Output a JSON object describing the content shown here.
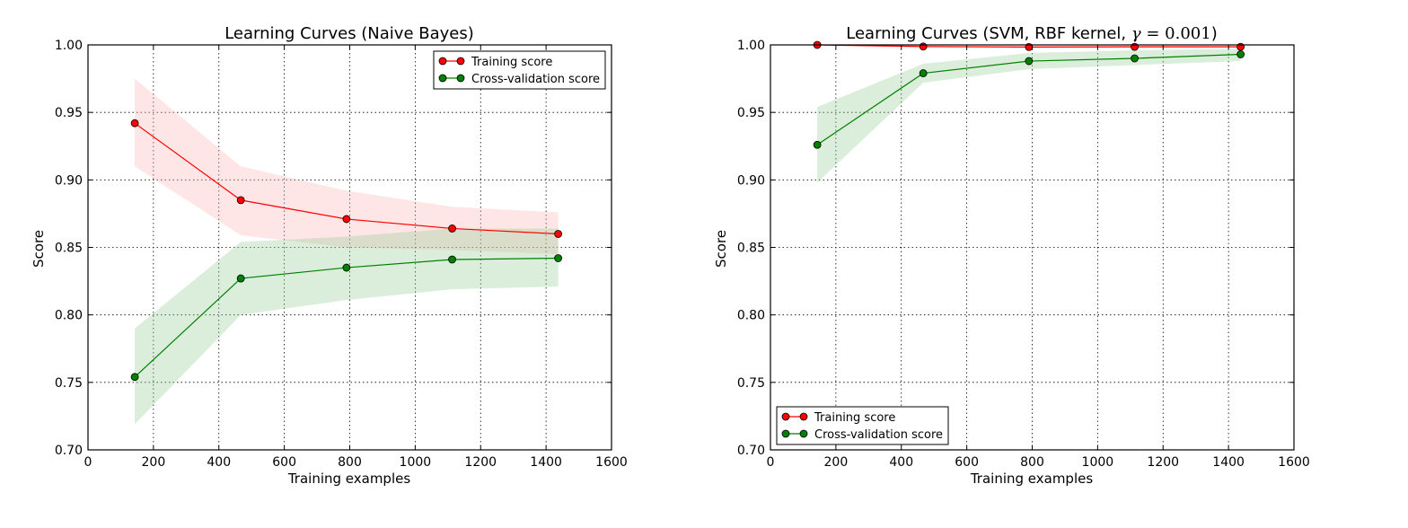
{
  "chart_data": [
    {
      "type": "line",
      "title": "Learning Curves (Naive Bayes)",
      "xlabel": "Training examples",
      "ylabel": "Score",
      "xlim": [
        0,
        1600
      ],
      "ylim": [
        0.7,
        1.0
      ],
      "xticks": [
        0,
        200,
        400,
        600,
        800,
        1000,
        1200,
        1400,
        1600
      ],
      "yticks": [
        0.7,
        0.75,
        0.8,
        0.85,
        0.9,
        0.95,
        1.0
      ],
      "xtick_labels": [
        "0",
        "200",
        "400",
        "600",
        "800",
        "1000",
        "1200",
        "1400",
        "1600"
      ],
      "ytick_labels": [
        "0.70",
        "0.75",
        "0.80",
        "0.85",
        "0.90",
        "0.95",
        "1.00"
      ],
      "grid": true,
      "legend_position": "top-right",
      "x": [
        143,
        467,
        790,
        1113,
        1437
      ],
      "series": [
        {
          "name": "Training score",
          "color": "#ff0000",
          "band_color": "#ffb6b6",
          "values": [
            0.942,
            0.885,
            0.871,
            0.864,
            0.86
          ],
          "band_low": [
            0.91,
            0.859,
            0.85,
            0.848,
            0.845
          ],
          "band_high": [
            0.975,
            0.91,
            0.892,
            0.88,
            0.876
          ]
        },
        {
          "name": "Cross-validation score",
          "color": "#008000",
          "band_color": "#99cc99",
          "values": [
            0.754,
            0.827,
            0.835,
            0.841,
            0.842
          ],
          "band_low": [
            0.719,
            0.8,
            0.811,
            0.819,
            0.821
          ],
          "band_high": [
            0.79,
            0.854,
            0.858,
            0.864,
            0.864
          ]
        }
      ]
    },
    {
      "type": "line",
      "title": "Learning Curves (SVM, RBF kernel, γ = 0.001)",
      "xlabel": "Training examples",
      "ylabel": "Score",
      "xlim": [
        0,
        1600
      ],
      "ylim": [
        0.7,
        1.0
      ],
      "xticks": [
        0,
        200,
        400,
        600,
        800,
        1000,
        1200,
        1400,
        1600
      ],
      "yticks": [
        0.7,
        0.75,
        0.8,
        0.85,
        0.9,
        0.95,
        1.0
      ],
      "xtick_labels": [
        "0",
        "200",
        "400",
        "600",
        "800",
        "1000",
        "1200",
        "1400",
        "1600"
      ],
      "ytick_labels": [
        "0.70",
        "0.75",
        "0.80",
        "0.85",
        "0.90",
        "0.95",
        "1.00"
      ],
      "grid": true,
      "legend_position": "bottom-left",
      "x": [
        143,
        467,
        790,
        1113,
        1437
      ],
      "series": [
        {
          "name": "Training score",
          "color": "#ff0000",
          "band_color": "#ffb6b6",
          "values": [
            1.0,
            0.9988,
            0.9984,
            0.9986,
            0.9986
          ],
          "band_low": [
            0.9995,
            0.998,
            0.9975,
            0.9978,
            0.9978
          ],
          "band_high": [
            1.0,
            0.9995,
            0.9992,
            0.9993,
            0.9993
          ]
        },
        {
          "name": "Cross-validation score",
          "color": "#008000",
          "band_color": "#99cc99",
          "values": [
            0.926,
            0.979,
            0.988,
            0.99,
            0.993
          ],
          "band_low": [
            0.898,
            0.972,
            0.982,
            0.985,
            0.988
          ],
          "band_high": [
            0.954,
            0.986,
            0.994,
            0.996,
            0.997
          ]
        }
      ]
    }
  ]
}
